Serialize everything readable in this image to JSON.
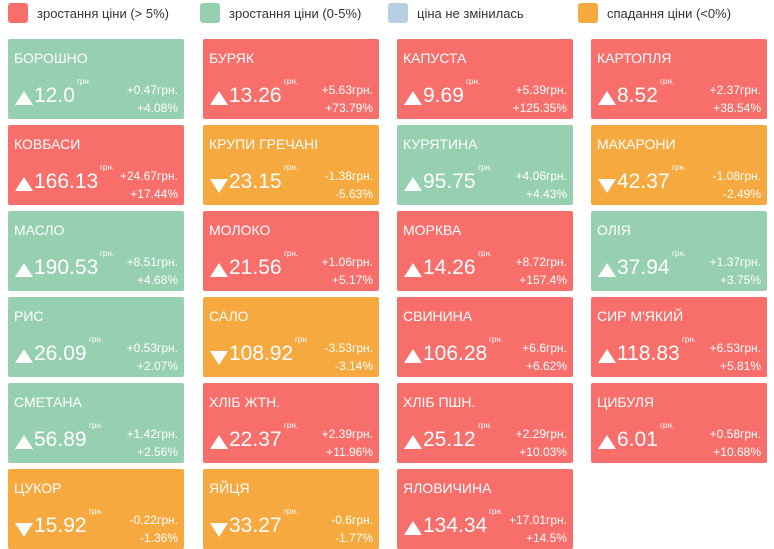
{
  "legend": [
    {
      "label": "зростання ціни (> 5%)",
      "color": "#f76e6a"
    },
    {
      "label": "зростання ціни (0-5%)",
      "color": "#97cfb1"
    },
    {
      "label": "ціна не змінилась",
      "color": "#b6cfe3"
    },
    {
      "label": "спадання ціни (<0%)",
      "color": "#f5a93f"
    }
  ],
  "unit": "грн.",
  "tiles": [
    {
      "name": "БОРОШНО",
      "price": "12.0",
      "change": "+0.47грн.",
      "percent": "+4.08%",
      "status": 1,
      "trend": "up"
    },
    {
      "name": "БУРЯК",
      "price": "13.26",
      "change": "+5.63грн.",
      "percent": "+73.79%",
      "status": 0,
      "trend": "up"
    },
    {
      "name": "КАПУСТА",
      "price": "9.69",
      "change": "+5.39грн.",
      "percent": "+125.35%",
      "status": 0,
      "trend": "up"
    },
    {
      "name": "КАРТОПЛЯ",
      "price": "8.52",
      "change": "+2.37грн.",
      "percent": "+38.54%",
      "status": 0,
      "trend": "up"
    },
    {
      "name": "КОВБАСИ",
      "price": "166.13",
      "change": "+24.67грн.",
      "percent": "+17.44%",
      "status": 0,
      "trend": "up"
    },
    {
      "name": "КРУПИ ГРЕЧАНІ",
      "price": "23.15",
      "change": "-1.38грн.",
      "percent": "-5.63%",
      "status": 3,
      "trend": "down"
    },
    {
      "name": "КУРЯТИНА",
      "price": "95.75",
      "change": "+4.06грн.",
      "percent": "+4.43%",
      "status": 1,
      "trend": "up"
    },
    {
      "name": "МАКАРОНИ",
      "price": "42.37",
      "change": "-1.08грн.",
      "percent": "-2.49%",
      "status": 3,
      "trend": "down"
    },
    {
      "name": "МАСЛО",
      "price": "190.53",
      "change": "+8.51грн.",
      "percent": "+4.68%",
      "status": 1,
      "trend": "up"
    },
    {
      "name": "МОЛОКО",
      "price": "21.56",
      "change": "+1.06грн.",
      "percent": "+5.17%",
      "status": 0,
      "trend": "up"
    },
    {
      "name": "МОРКВА",
      "price": "14.26",
      "change": "+8.72грн.",
      "percent": "+157.4%",
      "status": 0,
      "trend": "up"
    },
    {
      "name": "ОЛІЯ",
      "price": "37.94",
      "change": "+1.37грн.",
      "percent": "+3.75%",
      "status": 1,
      "trend": "up"
    },
    {
      "name": "РИС",
      "price": "26.09",
      "change": "+0.53грн.",
      "percent": "+2.07%",
      "status": 1,
      "trend": "up"
    },
    {
      "name": "САЛО",
      "price": "108.92",
      "change": "-3.53грн.",
      "percent": "-3.14%",
      "status": 3,
      "trend": "down"
    },
    {
      "name": "СВИНИНА",
      "price": "106.28",
      "change": "+6.6грн.",
      "percent": "+6.62%",
      "status": 0,
      "trend": "up"
    },
    {
      "name": "СИР М'ЯКИЙ",
      "price": "118.83",
      "change": "+6.53грн.",
      "percent": "+5.81%",
      "status": 0,
      "trend": "up"
    },
    {
      "name": "СМЕТАНА",
      "price": "56.89",
      "change": "+1.42грн.",
      "percent": "+2.56%",
      "status": 1,
      "trend": "up"
    },
    {
      "name": "ХЛІБ ЖТН.",
      "price": "22.37",
      "change": "+2.39грн.",
      "percent": "+11.96%",
      "status": 0,
      "trend": "up"
    },
    {
      "name": "ХЛІБ ПШН.",
      "price": "25.12",
      "change": "+2.29грн.",
      "percent": "+10.03%",
      "status": 0,
      "trend": "up"
    },
    {
      "name": "ЦИБУЛЯ",
      "price": "6.01",
      "change": "+0.58грн.",
      "percent": "+10.68%",
      "status": 0,
      "trend": "up"
    },
    {
      "name": "ЦУКОР",
      "price": "15.92",
      "change": "-0.22грн.",
      "percent": "-1.36%",
      "status": 3,
      "trend": "down"
    },
    {
      "name": "ЯЙЦЯ",
      "price": "33.27",
      "change": "-0.6грн.",
      "percent": "-1.77%",
      "status": 3,
      "trend": "down"
    },
    {
      "name": "ЯЛОВИЧИНА",
      "price": "134.34",
      "change": "+17.01грн.",
      "percent": "+14.5%",
      "status": 0,
      "trend": "up"
    }
  ]
}
